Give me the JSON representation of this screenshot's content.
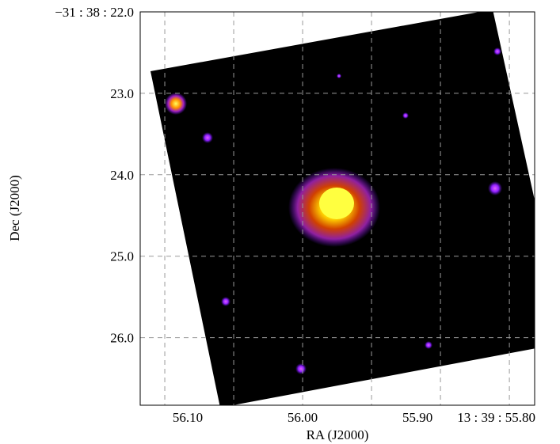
{
  "chart_data": {
    "type": "image",
    "xlabel": "RA (J2000)",
    "ylabel": "Dec (J2000)",
    "xlim": [
      56.1414,
      55.798
    ],
    "xticks": [
      {
        "value": 56.1,
        "label": "56.10"
      },
      {
        "value": 56.0,
        "label": "56.00"
      },
      {
        "value": 55.9,
        "label": "55.90"
      },
      {
        "value": 55.8,
        "label": "13 : 39 : 55.80"
      }
    ],
    "xgrid": [
      56.12,
      56.06,
      56.0,
      55.94,
      55.88,
      55.82
    ],
    "ylim": [
      22.0,
      26.83
    ],
    "yticks": [
      {
        "value": 22.0,
        "label": "−31 : 38 : 22.0"
      },
      {
        "value": 23.0,
        "label": "23.0"
      },
      {
        "value": 24.0,
        "label": "24.0"
      },
      {
        "value": 25.0,
        "label": "25.0"
      },
      {
        "value": 26.0,
        "label": "26.0"
      }
    ],
    "grid": true
  }
}
